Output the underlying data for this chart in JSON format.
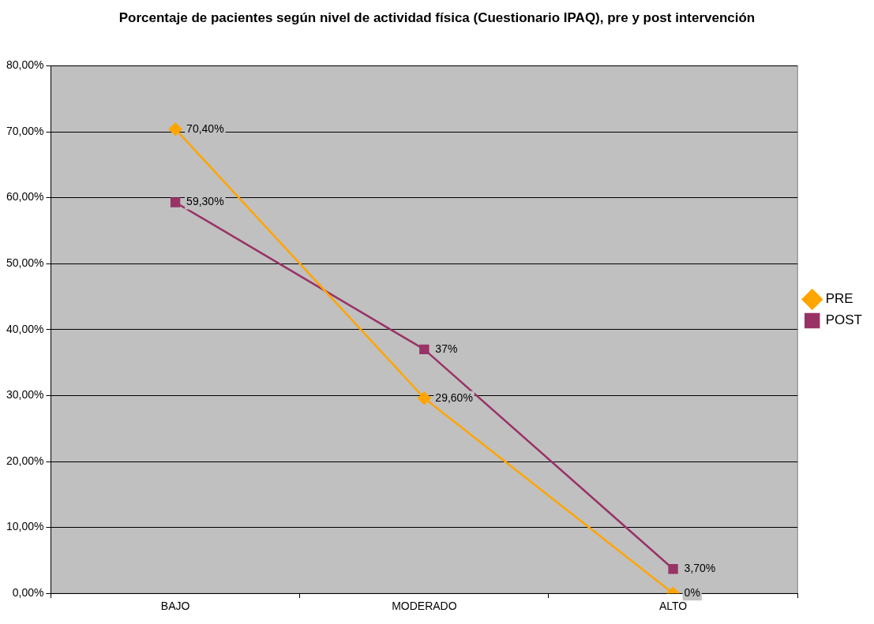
{
  "chart_data": {
    "type": "line",
    "title": "Porcentaje de pacientes según nivel de actividad física (Cuestionario IPAQ), pre y post intervención",
    "categories": [
      "BAJO",
      "MODERADO",
      "ALTO"
    ],
    "series": [
      {
        "name": "PRE",
        "color": "#ffa500",
        "marker": "diamond",
        "values": [
          70.4,
          29.6,
          0
        ],
        "value_labels": [
          "70,40%",
          "29,60%",
          "0%"
        ]
      },
      {
        "name": "POST",
        "color": "#993366",
        "marker": "square",
        "values": [
          59.3,
          37,
          3.7
        ],
        "value_labels": [
          "59,30%",
          "37%",
          "3,70%"
        ]
      }
    ],
    "ylim": [
      0,
      80
    ],
    "yticks": [
      {
        "value": 0,
        "label": "0,00%"
      },
      {
        "value": 10,
        "label": "10,00%"
      },
      {
        "value": 20,
        "label": "20,00%"
      },
      {
        "value": 30,
        "label": "30,00%"
      },
      {
        "value": 40,
        "label": "40,00%"
      },
      {
        "value": 50,
        "label": "50,00%"
      },
      {
        "value": 60,
        "label": "60,00%"
      },
      {
        "value": 70,
        "label": "70,00%"
      },
      {
        "value": 80,
        "label": "80,00%"
      }
    ],
    "grid": "y",
    "legend": "right",
    "line_style": "solid"
  }
}
